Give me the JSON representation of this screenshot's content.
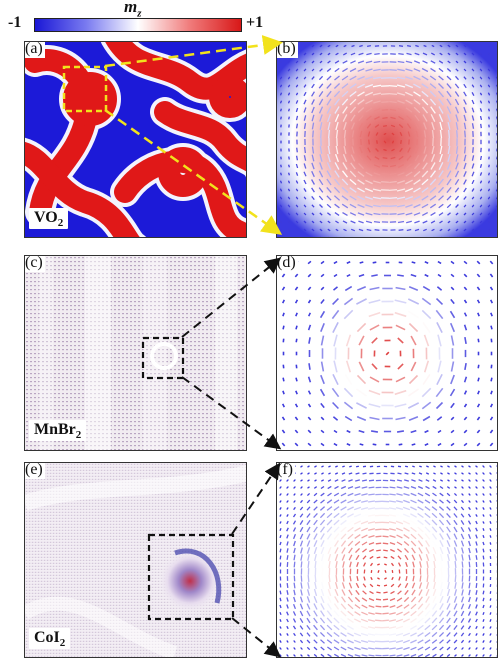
{
  "colorbar": {
    "min_label": "-1",
    "max_label": "+1",
    "title_main": "m",
    "title_sub": "z",
    "low_color": "#1a17d6",
    "mid_color": "#ffffff",
    "high_color": "#d81818"
  },
  "panels": {
    "a": {
      "label": "(a)",
      "material_main": "VO",
      "material_sub": "2"
    },
    "b": {
      "label": "(b)"
    },
    "c": {
      "label": "(c)",
      "material_main": "MnBr",
      "material_sub": "2"
    },
    "d": {
      "label": "(d)"
    },
    "e": {
      "label": "(e)",
      "material_main": "CoI",
      "material_sub": "2"
    },
    "f": {
      "label": "(f)"
    }
  },
  "zoom_link_colors": {
    "vo2": "#f2e21c",
    "mnbr2": "#111111",
    "coi2": "#111111"
  }
}
